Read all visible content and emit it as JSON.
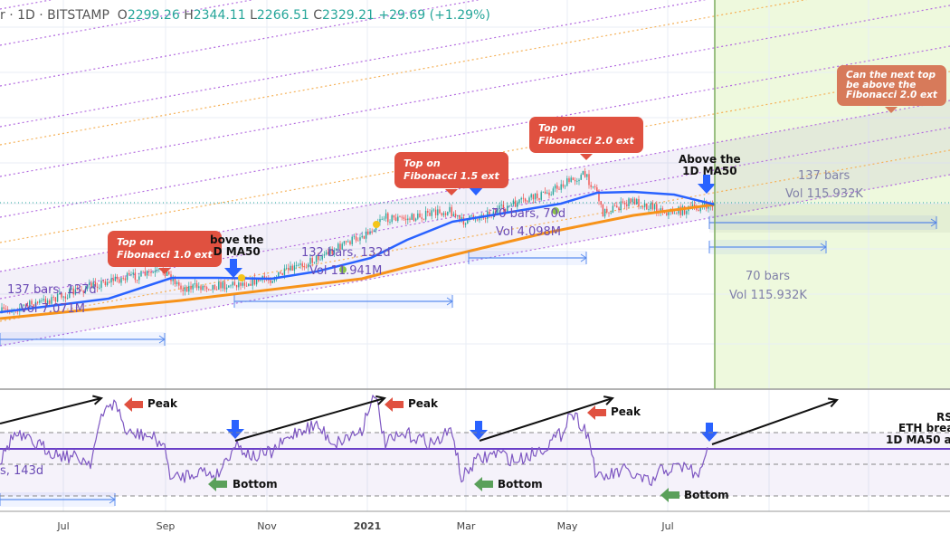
{
  "header": {
    "symbol_fragment": "r · 1D · BITSTAMP",
    "open_label": "O",
    "open": "2299.26",
    "high_label": "H",
    "high": "2344.11",
    "low_label": "L",
    "low": "2266.51",
    "close_label": "C",
    "close": "2329.21",
    "change": "+29.69 (+1.29%)"
  },
  "colors": {
    "up": "#26a69a",
    "down": "#ef5350",
    "ma50": "#2962ff",
    "ma200": "#f7931a",
    "rsi": "#7e57c2",
    "callout": "#e05140",
    "projection_zone": "#eef9dd"
  },
  "chart_data": {
    "type": "candlestick",
    "interval": "1D",
    "exchange": "BITSTAMP",
    "x_ticks": [
      "Jul",
      "Sep",
      "Nov",
      "2021",
      "Mar",
      "May",
      "Jul"
    ],
    "series": [
      {
        "name": "1D MA50"
      },
      {
        "name": "MA200"
      },
      {
        "name": "RSI"
      }
    ],
    "last_bar": {
      "open": 2299.26,
      "high": 2344.11,
      "low": 2266.51,
      "close": 2329.21,
      "change": 29.69,
      "change_pct": 1.29
    },
    "annotations": {
      "callouts": [
        "Top on\nFibonacci 1.0 ext",
        "Top on\nFibonacci 1.5 ext",
        "Top on\nFibonacci 2.0 ext",
        "Can the next top\nbe above the\nFibonacci 2.0 ext"
      ],
      "ma50_labels": [
        "bove the\nD MA50",
        "Above the\n1D MA50"
      ],
      "ranges": [
        {
          "bars": "137 bars, 137d",
          "vol": "Vol 7.071M"
        },
        {
          "bars": "132 bars, 132d",
          "vol": "Vol 11.941M"
        },
        {
          "bars": "70 bars, 70d",
          "vol": "Vol 4.098M"
        },
        {
          "bars": "137 bars",
          "vol": "Vol 115.932K"
        },
        {
          "bars": "70 bars",
          "vol": "Vol 115.932K"
        }
      ],
      "rsi_range": "s, 143d",
      "rsi_labels": {
        "peak": "Peak",
        "bottom": "Bottom",
        "note": [
          "RS",
          "ETH brea",
          "1D MA50 a"
        ]
      }
    }
  }
}
